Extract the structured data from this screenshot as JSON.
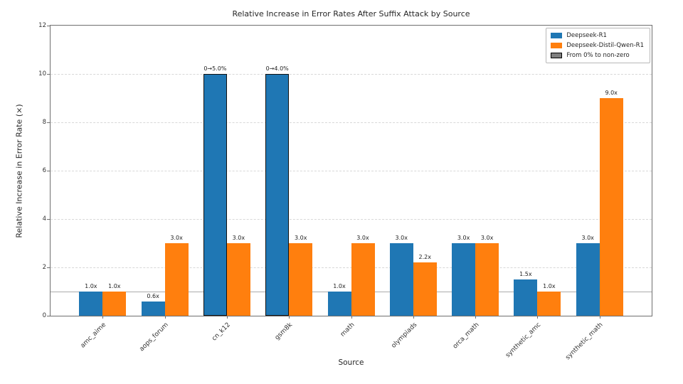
{
  "chart_data": {
    "type": "bar",
    "title": "Relative Increase in Error Rates After Suffix Attack by Source",
    "xlabel": "Source",
    "ylabel": "Relative Increase in Error Rate (×)",
    "ylim": [
      0,
      12
    ],
    "yticks": [
      0,
      2,
      4,
      6,
      8,
      10,
      12
    ],
    "grid": {
      "axis": "y",
      "style": "dashed",
      "color": "#d8d8d8"
    },
    "reference_line": {
      "y": 1,
      "style": "solid",
      "color": "#ababab"
    },
    "categories": [
      "amc_aime",
      "aops_forum",
      "cn_k12",
      "gsm8k",
      "math",
      "olympiads",
      "orca_math",
      "synthetic_amc",
      "synthetic_math"
    ],
    "series": [
      {
        "name": "Deepseek-R1",
        "color": "#1f77b4",
        "values": [
          1.0,
          0.6,
          10.0,
          10.0,
          1.0,
          3.0,
          3.0,
          1.5,
          3.0
        ],
        "labels": [
          "1.0x",
          "0.6x",
          "0→5.0%",
          "0→4.0%",
          "1.0x",
          "3.0x",
          "3.0x",
          "1.5x",
          "3.0x"
        ],
        "zero_to_nonzero": [
          false,
          false,
          true,
          true,
          false,
          false,
          false,
          false,
          false
        ]
      },
      {
        "name": "Deepseek-Distil-Qwen-R1",
        "color": "#ff7f0e",
        "values": [
          1.0,
          3.0,
          3.0,
          3.0,
          3.0,
          2.2,
          3.0,
          1.0,
          9.0
        ],
        "labels": [
          "1.0x",
          "3.0x",
          "3.0x",
          "3.0x",
          "3.0x",
          "2.2x",
          "3.0x",
          "1.0x",
          "9.0x"
        ],
        "zero_to_nonzero": [
          false,
          false,
          false,
          false,
          false,
          false,
          false,
          false,
          false
        ]
      }
    ],
    "legend": {
      "position": "upper right",
      "entries": [
        {
          "label": "Deepseek-R1",
          "color": "#1f77b4",
          "edge": "none"
        },
        {
          "label": "Deepseek-Distil-Qwen-R1",
          "color": "#ff7f0e",
          "edge": "none"
        },
        {
          "label": "From 0% to non-zero",
          "color": "#7f7f7f",
          "edge": "#000000"
        }
      ]
    }
  }
}
